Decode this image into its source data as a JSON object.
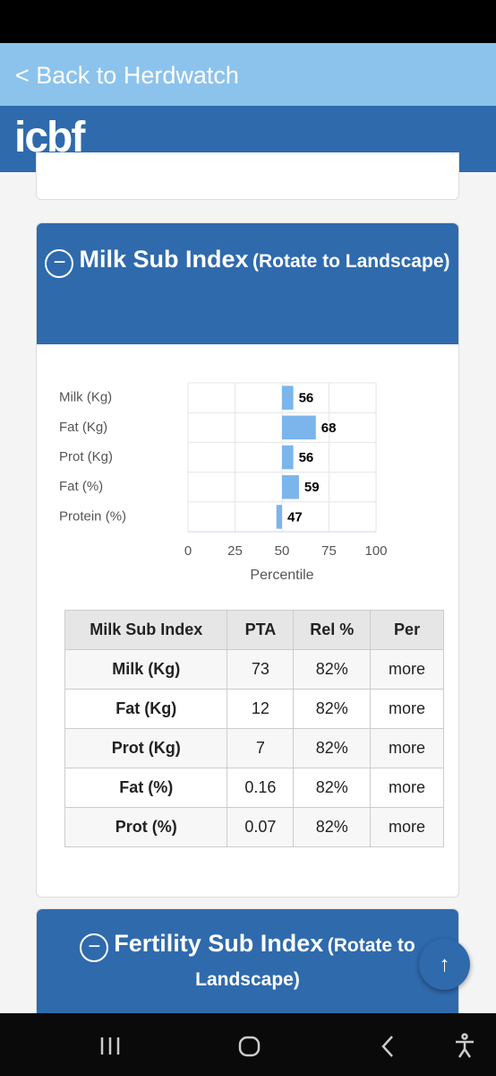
{
  "header": {
    "back_link": "< Back to Herdwatch",
    "logo": "icbf"
  },
  "milk_section": {
    "title": "Milk Sub Index",
    "note": "(Rotate to Landscape)"
  },
  "chart_data": {
    "type": "bar",
    "orientation": "horizontal",
    "categories": [
      "Milk (Kg)",
      "Fat (Kg)",
      "Prot (Kg)",
      "Fat (%)",
      "Protein (%)"
    ],
    "values": [
      56,
      68,
      56,
      59,
      47
    ],
    "color": "#7cb5ec",
    "baseline": 50,
    "xlim": [
      0,
      100
    ],
    "xticks": [
      0,
      25,
      50,
      75,
      100
    ],
    "xlabel": "Percentile",
    "grid": true
  },
  "table": {
    "columns": [
      "Milk Sub Index",
      "PTA",
      "Rel %",
      "Per"
    ],
    "rows": [
      [
        "Milk (Kg)",
        "73",
        "82%",
        "more"
      ],
      [
        "Fat (Kg)",
        "12",
        "82%",
        "more"
      ],
      [
        "Prot (Kg)",
        "7",
        "82%",
        "more"
      ],
      [
        "Fat (%)",
        "0.16",
        "82%",
        "more"
      ],
      [
        "Prot (%)",
        "0.07",
        "82%",
        "more"
      ]
    ]
  },
  "fertility_section": {
    "title": "Fertility Sub Index",
    "note": "(Rotate to Landscape)"
  }
}
